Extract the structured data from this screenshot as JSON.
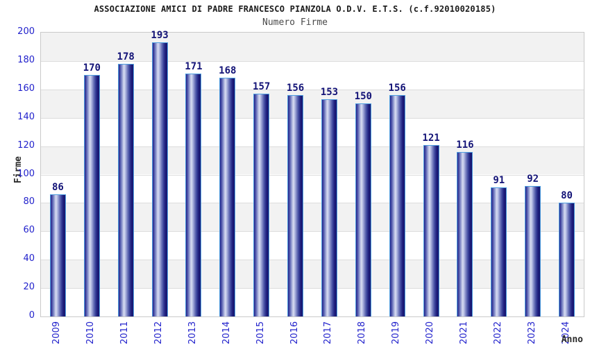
{
  "chart_data": {
    "type": "bar",
    "title": "ASSOCIAZIONE AMICI DI PADRE FRANCESCO PIANZOLA O.D.V. E.T.S. (c.f.92010020185)",
    "subtitle": "Numero Firme",
    "xlabel": "Anno",
    "ylabel": "Firme",
    "categories": [
      "2009",
      "2010",
      "2011",
      "2012",
      "2013",
      "2014",
      "2015",
      "2016",
      "2017",
      "2018",
      "2019",
      "2020",
      "2021",
      "2022",
      "2023",
      "2024"
    ],
    "values": [
      86,
      170,
      178,
      193,
      171,
      168,
      157,
      156,
      153,
      150,
      156,
      121,
      116,
      91,
      92,
      80
    ],
    "ylim": [
      0,
      200
    ],
    "ytick_step": 20,
    "grid": true,
    "legend_position": "none",
    "value_labels_shown": true,
    "colors": {
      "bar_dark": "#17176e",
      "bar_highlight": "#d9ddf2",
      "bar_border": "#4f9fe0",
      "tick_label": "#2222cc",
      "value_label": "#131377",
      "title": "#1a1a1a",
      "subtitle": "#4a4a4a",
      "axis_title": "#2b2b2b",
      "band": "#f2f2f2",
      "grid_line": "#dcdcdc",
      "plot_border": "#c9c9c9",
      "background": "#ffffff"
    }
  }
}
